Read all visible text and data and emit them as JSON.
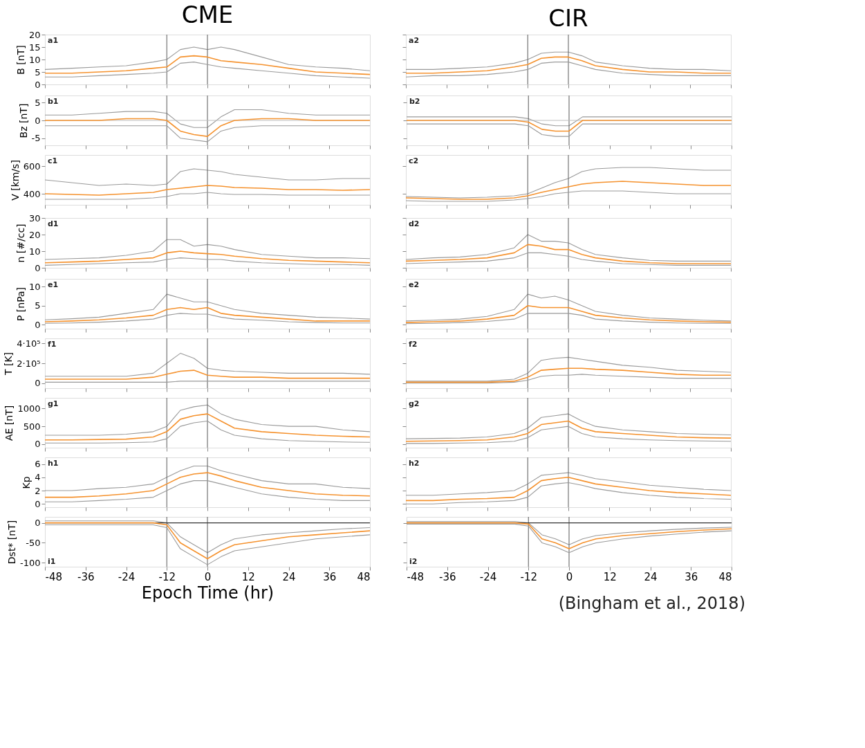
{
  "chart_data": [
    {
      "type": "line",
      "title": "CME",
      "ylabel": "B [nT]",
      "annotations": [
        "a1"
      ],
      "tick_labels": "y",
      "xlim": [
        -48,
        48
      ],
      "xticks": [
        -48,
        -36,
        -24,
        -12,
        0,
        12,
        24,
        36,
        48
      ],
      "ylim": [
        0,
        20
      ],
      "yticks": [
        0,
        5,
        10,
        15,
        20
      ],
      "ref_lines": [
        {
          "axis": "x",
          "value": -12,
          "color": "#666666"
        },
        {
          "axis": "x",
          "value": 0,
          "color": "#666666"
        }
      ],
      "x": [
        -48,
        -40,
        -32,
        -24,
        -16,
        -12,
        -8,
        -4,
        0,
        4,
        8,
        16,
        24,
        32,
        40,
        48
      ],
      "series": [
        {
          "color": "#999999",
          "values": [
            6,
            6.5,
            7,
            7.5,
            9,
            10,
            14,
            15,
            14,
            15,
            14,
            11,
            8,
            7,
            6.5,
            5.5
          ]
        },
        {
          "color": "#999999",
          "values": [
            3,
            3,
            3.5,
            4,
            4.5,
            5,
            8.5,
            9,
            8,
            7,
            6.5,
            5.5,
            4.5,
            3.5,
            3,
            2.5
          ]
        },
        {
          "color": "#f5922e",
          "values": [
            4.5,
            4.5,
            5,
            5.5,
            6.5,
            7,
            11,
            11.5,
            11,
            9.5,
            9,
            8,
            6.5,
            5,
            4.5,
            4
          ]
        }
      ]
    },
    {
      "type": "line",
      "title": "CIR",
      "annotations": [
        "a2"
      ],
      "tick_labels": false,
      "xlim": [
        -48,
        48
      ],
      "xticks": [
        -48,
        -36,
        -24,
        -12,
        0,
        12,
        24,
        36,
        48
      ],
      "ylim": [
        0,
        20
      ],
      "yticks": [
        0,
        5,
        10,
        15,
        20
      ],
      "ref_lines": [
        {
          "axis": "x",
          "value": -12,
          "color": "#666666"
        },
        {
          "axis": "x",
          "value": 0,
          "color": "#666666"
        }
      ],
      "x": [
        -48,
        -40,
        -32,
        -24,
        -16,
        -12,
        -8,
        -4,
        0,
        4,
        8,
        16,
        24,
        32,
        40,
        48
      ],
      "series": [
        {
          "color": "#999999",
          "values": [
            6,
            6,
            6.5,
            7,
            8.5,
            10,
            12.5,
            13,
            13,
            11.5,
            9,
            7.5,
            6.5,
            6,
            6,
            5.5
          ]
        },
        {
          "color": "#999999",
          "values": [
            3,
            3.5,
            3.5,
            4,
            5,
            6,
            8.5,
            9,
            9,
            7.5,
            6,
            4.5,
            4,
            3.5,
            3.5,
            3.5
          ]
        },
        {
          "color": "#f5922e",
          "values": [
            4.5,
            4.5,
            5,
            5.5,
            7,
            8,
            10.5,
            11,
            11,
            9.5,
            7.5,
            6,
            5,
            5,
            4.5,
            4.5
          ]
        }
      ]
    },
    {
      "type": "line",
      "ylabel": "Bz [nT]",
      "annotations": [
        "b1"
      ],
      "tick_labels": "y",
      "xlim": [
        -48,
        48
      ],
      "xticks": [
        -48,
        -36,
        -24,
        -12,
        0,
        12,
        24,
        36,
        48
      ],
      "ylim": [
        -7,
        7
      ],
      "yticks": [
        -5,
        0,
        5
      ],
      "ref_lines": [
        {
          "axis": "x",
          "value": -12,
          "color": "#666666"
        },
        {
          "axis": "x",
          "value": 0,
          "color": "#666666"
        },
        {
          "axis": "y",
          "value": 0,
          "color": "#bbbbbb"
        }
      ],
      "x": [
        -48,
        -40,
        -32,
        -24,
        -16,
        -12,
        -8,
        -4,
        0,
        4,
        8,
        16,
        24,
        32,
        40,
        48
      ],
      "series": [
        {
          "color": "#999999",
          "values": [
            1.5,
            1.5,
            2,
            2.5,
            2.5,
            2,
            -1,
            -2,
            -2,
            1,
            3,
            3,
            2,
            1.5,
            1.5,
            1.5
          ]
        },
        {
          "color": "#999999",
          "values": [
            -1.5,
            -1.5,
            -1.5,
            -1.5,
            -1.5,
            -1.5,
            -5,
            -5.5,
            -6,
            -3,
            -2,
            -1.5,
            -1.5,
            -1.5,
            -1.5,
            -1.5
          ]
        },
        {
          "color": "#f5922e",
          "values": [
            0,
            0,
            0,
            0.5,
            0.5,
            0,
            -3,
            -4,
            -4.5,
            -1.5,
            0,
            0.5,
            0.5,
            0,
            0,
            0
          ]
        }
      ]
    },
    {
      "type": "line",
      "annotations": [
        "b2"
      ],
      "tick_labels": false,
      "xlim": [
        -48,
        48
      ],
      "xticks": [
        -48,
        -36,
        -24,
        -12,
        0,
        12,
        24,
        36,
        48
      ],
      "ylim": [
        -7,
        7
      ],
      "yticks": [
        -5,
        0,
        5
      ],
      "ref_lines": [
        {
          "axis": "x",
          "value": -12,
          "color": "#666666"
        },
        {
          "axis": "x",
          "value": 0,
          "color": "#666666"
        },
        {
          "axis": "y",
          "value": 0,
          "color": "#bbbbbb"
        }
      ],
      "x": [
        -48,
        -40,
        -32,
        -24,
        -16,
        -12,
        -8,
        -4,
        0,
        4,
        8,
        16,
        24,
        32,
        40,
        48
      ],
      "series": [
        {
          "color": "#999999",
          "values": [
            1,
            1,
            1,
            1,
            1,
            0.5,
            -1,
            -1.5,
            -1.5,
            1,
            1,
            1,
            1,
            1,
            1,
            1
          ]
        },
        {
          "color": "#999999",
          "values": [
            -1,
            -1,
            -1,
            -1,
            -1,
            -1.5,
            -4,
            -4.5,
            -4.5,
            -1,
            -1,
            -1,
            -1,
            -1,
            -1,
            -1
          ]
        },
        {
          "color": "#f5922e",
          "values": [
            0,
            0,
            0,
            0,
            0,
            -0.5,
            -2.5,
            -3,
            -3,
            0,
            0,
            0,
            0,
            0,
            0,
            0
          ]
        }
      ]
    },
    {
      "type": "line",
      "ylabel": "V [km/s]",
      "annotations": [
        "c1"
      ],
      "tick_labels": "y",
      "xlim": [
        -48,
        48
      ],
      "xticks": [
        -48,
        -36,
        -24,
        -12,
        0,
        12,
        24,
        36,
        48
      ],
      "ylim": [
        320,
        680
      ],
      "yticks": [
        400,
        600
      ],
      "ref_lines": [
        {
          "axis": "x",
          "value": -12,
          "color": "#666666"
        },
        {
          "axis": "x",
          "value": 0,
          "color": "#666666"
        }
      ],
      "x": [
        -48,
        -40,
        -32,
        -24,
        -16,
        -12,
        -8,
        -4,
        0,
        4,
        8,
        16,
        24,
        32,
        40,
        48
      ],
      "series": [
        {
          "color": "#999999",
          "values": [
            500,
            480,
            460,
            470,
            460,
            470,
            560,
            580,
            570,
            560,
            540,
            520,
            500,
            500,
            510,
            510
          ]
        },
        {
          "color": "#999999",
          "values": [
            360,
            360,
            360,
            360,
            370,
            380,
            400,
            400,
            410,
            400,
            395,
            395,
            390,
            390,
            390,
            390
          ]
        },
        {
          "color": "#f5922e",
          "values": [
            400,
            395,
            390,
            400,
            410,
            430,
            440,
            450,
            460,
            455,
            445,
            440,
            430,
            430,
            425,
            430
          ]
        }
      ]
    },
    {
      "type": "line",
      "annotations": [
        "c2"
      ],
      "tick_labels": false,
      "xlim": [
        -48,
        48
      ],
      "xticks": [
        -48,
        -36,
        -24,
        -12,
        0,
        12,
        24,
        36,
        48
      ],
      "ylim": [
        320,
        680
      ],
      "yticks": [
        400,
        600
      ],
      "ref_lines": [
        {
          "axis": "x",
          "value": -12,
          "color": "#666666"
        },
        {
          "axis": "x",
          "value": 0,
          "color": "#666666"
        }
      ],
      "x": [
        -48,
        -40,
        -32,
        -24,
        -16,
        -12,
        -8,
        -4,
        0,
        4,
        8,
        16,
        24,
        32,
        40,
        48
      ],
      "series": [
        {
          "color": "#999999",
          "values": [
            380,
            375,
            370,
            375,
            385,
            400,
            440,
            480,
            510,
            560,
            580,
            590,
            590,
            580,
            570,
            570
          ]
        },
        {
          "color": "#999999",
          "values": [
            350,
            345,
            345,
            345,
            355,
            365,
            380,
            400,
            410,
            420,
            420,
            420,
            410,
            400,
            400,
            400
          ]
        },
        {
          "color": "#f5922e",
          "values": [
            370,
            365,
            360,
            360,
            370,
            385,
            410,
            430,
            450,
            470,
            480,
            490,
            480,
            470,
            460,
            460
          ]
        }
      ]
    },
    {
      "type": "line",
      "ylabel": "n [#/cc]",
      "annotations": [
        "d1"
      ],
      "tick_labels": "y",
      "xlim": [
        -48,
        48
      ],
      "xticks": [
        -48,
        -36,
        -24,
        -12,
        0,
        12,
        24,
        36,
        48
      ],
      "ylim": [
        0,
        30
      ],
      "yticks": [
        0,
        10,
        20,
        30
      ],
      "ref_lines": [
        {
          "axis": "x",
          "value": -12,
          "color": "#666666"
        },
        {
          "axis": "x",
          "value": 0,
          "color": "#666666"
        }
      ],
      "x": [
        -48,
        -40,
        -32,
        -24,
        -16,
        -12,
        -8,
        -4,
        0,
        4,
        8,
        16,
        24,
        32,
        40,
        48
      ],
      "series": [
        {
          "color": "#999999",
          "values": [
            5,
            5.5,
            6,
            7.5,
            10,
            17,
            17,
            13,
            14,
            13,
            11,
            8,
            7,
            6,
            6,
            5.5
          ]
        },
        {
          "color": "#999999",
          "values": [
            1.5,
            2,
            2.5,
            3,
            3.5,
            5,
            6,
            5.5,
            5,
            5,
            4,
            3,
            2.5,
            2,
            2,
            1.5
          ]
        },
        {
          "color": "#f5922e",
          "values": [
            3,
            3.5,
            4,
            5,
            6,
            9,
            10,
            9,
            8.5,
            8,
            7,
            5.5,
            4.5,
            4,
            3.5,
            3
          ]
        }
      ]
    },
    {
      "type": "line",
      "annotations": [
        "d2"
      ],
      "tick_labels": false,
      "xlim": [
        -48,
        48
      ],
      "xticks": [
        -48,
        -36,
        -24,
        -12,
        0,
        12,
        24,
        36,
        48
      ],
      "ylim": [
        0,
        30
      ],
      "yticks": [
        0,
        10,
        20,
        30
      ],
      "ref_lines": [
        {
          "axis": "x",
          "value": -12,
          "color": "#666666"
        },
        {
          "axis": "x",
          "value": 0,
          "color": "#666666"
        }
      ],
      "x": [
        -48,
        -40,
        -32,
        -24,
        -16,
        -12,
        -8,
        -4,
        0,
        4,
        8,
        16,
        24,
        32,
        40,
        48
      ],
      "series": [
        {
          "color": "#999999",
          "values": [
            5,
            6,
            6.5,
            8,
            12,
            20,
            16,
            16,
            15,
            11,
            8,
            6,
            4.5,
            4,
            4,
            4
          ]
        },
        {
          "color": "#999999",
          "values": [
            2.5,
            3,
            3.5,
            4,
            6,
            9,
            9,
            8,
            7,
            5,
            4,
            2.5,
            2,
            1.5,
            1.5,
            1.5
          ]
        },
        {
          "color": "#f5922e",
          "values": [
            4,
            4.5,
            5,
            6,
            9,
            14,
            13,
            11,
            11,
            8,
            6,
            4,
            3,
            2.5,
            2.5,
            2.5
          ]
        }
      ]
    },
    {
      "type": "line",
      "ylabel": "P [nPa]",
      "annotations": [
        "e1"
      ],
      "tick_labels": "y",
      "xlim": [
        -48,
        48
      ],
      "xticks": [
        -48,
        -36,
        -24,
        -12,
        0,
        12,
        24,
        36,
        48
      ],
      "ylim": [
        -1,
        12
      ],
      "yticks": [
        0,
        5,
        10
      ],
      "ref_lines": [
        {
          "axis": "x",
          "value": -12,
          "color": "#666666"
        },
        {
          "axis": "x",
          "value": 0,
          "color": "#666666"
        }
      ],
      "x": [
        -48,
        -40,
        -32,
        -24,
        -16,
        -12,
        -8,
        -4,
        0,
        4,
        8,
        16,
        24,
        32,
        40,
        48
      ],
      "series": [
        {
          "color": "#999999",
          "values": [
            1.3,
            1.6,
            2,
            3,
            4,
            8,
            7,
            6,
            6,
            5,
            4,
            3,
            2.5,
            2,
            1.8,
            1.5
          ]
        },
        {
          "color": "#999999",
          "values": [
            0.4,
            0.5,
            0.7,
            1,
            1.5,
            2.5,
            3,
            2.8,
            2.8,
            2,
            1.5,
            1.2,
            0.8,
            0.6,
            0.5,
            0.5
          ]
        },
        {
          "color": "#f5922e",
          "values": [
            0.8,
            1,
            1.3,
            1.8,
            2.5,
            4,
            4.5,
            4,
            4.5,
            3,
            2.5,
            2,
            1.5,
            1,
            1,
            1
          ]
        }
      ]
    },
    {
      "type": "line",
      "annotations": [
        "e2"
      ],
      "tick_labels": false,
      "xlim": [
        -48,
        48
      ],
      "xticks": [
        -48,
        -36,
        -24,
        -12,
        0,
        12,
        24,
        36,
        48
      ],
      "ylim": [
        -1,
        12
      ],
      "yticks": [
        0,
        5,
        10
      ],
      "ref_lines": [
        {
          "axis": "x",
          "value": -12,
          "color": "#666666"
        },
        {
          "axis": "x",
          "value": 0,
          "color": "#666666"
        }
      ],
      "x": [
        -48,
        -40,
        -32,
        -24,
        -16,
        -12,
        -8,
        -4,
        0,
        4,
        8,
        16,
        24,
        32,
        40,
        48
      ],
      "series": [
        {
          "color": "#999999",
          "values": [
            1,
            1.2,
            1.5,
            2.2,
            4,
            8,
            7,
            7.5,
            6.5,
            5,
            3.5,
            2.5,
            1.8,
            1.5,
            1.2,
            1
          ]
        },
        {
          "color": "#999999",
          "values": [
            0.3,
            0.4,
            0.6,
            0.9,
            1.5,
            3,
            3,
            3,
            3,
            2.5,
            1.5,
            1,
            0.7,
            0.5,
            0.4,
            0.4
          ]
        },
        {
          "color": "#f5922e",
          "values": [
            0.6,
            0.8,
            1,
            1.5,
            2.5,
            5,
            4.5,
            4.5,
            4.5,
            3.5,
            2.5,
            1.8,
            1.3,
            1,
            0.8,
            0.7
          ]
        }
      ]
    },
    {
      "type": "line",
      "ylabel": "T [K]",
      "annotations": [
        "f1"
      ],
      "tick_labels": "y",
      "xlim": [
        -48,
        48
      ],
      "xticks": [
        -48,
        -36,
        -24,
        -12,
        0,
        12,
        24,
        36,
        48
      ],
      "ylim": [
        -50000,
        450000
      ],
      "yticks": [
        0,
        {
          "value": 200000,
          "label": "2·10⁵"
        },
        {
          "value": 400000,
          "label": "4·10⁵"
        }
      ],
      "ref_lines": [
        {
          "axis": "x",
          "value": -12,
          "color": "#666666"
        },
        {
          "axis": "x",
          "value": 0,
          "color": "#666666"
        }
      ],
      "x": [
        -48,
        -40,
        -32,
        -24,
        -16,
        -12,
        -8,
        -4,
        0,
        4,
        8,
        16,
        24,
        32,
        40,
        48
      ],
      "series": [
        {
          "color": "#999999",
          "values": [
            70000,
            70000,
            70000,
            70000,
            100000,
            200000,
            300000,
            250000,
            150000,
            130000,
            120000,
            110000,
            100000,
            100000,
            100000,
            90000
          ]
        },
        {
          "color": "#999999",
          "values": [
            10000,
            10000,
            10000,
            10000,
            10000,
            10000,
            20000,
            20000,
            20000,
            20000,
            20000,
            20000,
            20000,
            20000,
            20000,
            20000
          ]
        },
        {
          "color": "#f5922e",
          "values": [
            40000,
            40000,
            40000,
            40000,
            60000,
            90000,
            120000,
            130000,
            80000,
            70000,
            60000,
            60000,
            50000,
            50000,
            50000,
            50000
          ]
        }
      ]
    },
    {
      "type": "line",
      "annotations": [
        "f2"
      ],
      "tick_labels": false,
      "xlim": [
        -48,
        48
      ],
      "xticks": [
        -48,
        -36,
        -24,
        -12,
        0,
        12,
        24,
        36,
        48
      ],
      "ylim": [
        -50000,
        450000
      ],
      "yticks": [
        0,
        200000,
        400000
      ],
      "ref_lines": [
        {
          "axis": "x",
          "value": -12,
          "color": "#666666"
        },
        {
          "axis": "x",
          "value": 0,
          "color": "#666666"
        }
      ],
      "x": [
        -48,
        -40,
        -32,
        -24,
        -16,
        -12,
        -8,
        -4,
        0,
        4,
        8,
        16,
        24,
        32,
        40,
        48
      ],
      "series": [
        {
          "color": "#999999",
          "values": [
            20000,
            20000,
            20000,
            20000,
            40000,
            100000,
            230000,
            250000,
            260000,
            240000,
            220000,
            180000,
            160000,
            130000,
            120000,
            110000
          ]
        },
        {
          "color": "#999999",
          "values": [
            0,
            0,
            0,
            0,
            10000,
            30000,
            70000,
            80000,
            80000,
            90000,
            80000,
            70000,
            60000,
            50000,
            50000,
            50000
          ]
        },
        {
          "color": "#f5922e",
          "values": [
            10000,
            10000,
            10000,
            10000,
            20000,
            60000,
            130000,
            140000,
            150000,
            150000,
            140000,
            130000,
            110000,
            90000,
            80000,
            80000
          ]
        }
      ]
    },
    {
      "type": "line",
      "ylabel": "AE [nT]",
      "annotations": [
        "g1"
      ],
      "tick_labels": "y",
      "xlim": [
        -48,
        48
      ],
      "xticks": [
        -48,
        -36,
        -24,
        -12,
        0,
        12,
        24,
        36,
        48
      ],
      "ylim": [
        -100,
        1300
      ],
      "yticks": [
        0,
        500,
        1000
      ],
      "ref_lines": [
        {
          "axis": "x",
          "value": -12,
          "color": "#666666"
        },
        {
          "axis": "x",
          "value": 0,
          "color": "#666666"
        }
      ],
      "x": [
        -48,
        -40,
        -32,
        -24,
        -16,
        -12,
        -8,
        -4,
        0,
        4,
        8,
        16,
        24,
        32,
        40,
        48
      ],
      "series": [
        {
          "color": "#999999",
          "values": [
            250,
            250,
            250,
            280,
            350,
            500,
            950,
            1050,
            1100,
            850,
            700,
            550,
            500,
            500,
            400,
            350
          ]
        },
        {
          "color": "#999999",
          "values": [
            30,
            30,
            30,
            40,
            60,
            150,
            500,
            600,
            650,
            400,
            250,
            150,
            100,
            80,
            60,
            50
          ]
        },
        {
          "color": "#f5922e",
          "values": [
            120,
            120,
            130,
            140,
            200,
            350,
            700,
            800,
            850,
            650,
            450,
            350,
            300,
            250,
            220,
            200
          ]
        }
      ]
    },
    {
      "type": "line",
      "annotations": [
        "g2"
      ],
      "tick_labels": false,
      "xlim": [
        -48,
        48
      ],
      "xticks": [
        -48,
        -36,
        -24,
        -12,
        0,
        12,
        24,
        36,
        48
      ],
      "ylim": [
        -100,
        1300
      ],
      "yticks": [
        0,
        500,
        1000
      ],
      "ref_lines": [
        {
          "axis": "x",
          "value": -12,
          "color": "#666666"
        },
        {
          "axis": "x",
          "value": 0,
          "color": "#666666"
        }
      ],
      "x": [
        -48,
        -40,
        -32,
        -24,
        -16,
        -12,
        -8,
        -4,
        0,
        4,
        8,
        16,
        24,
        32,
        40,
        48
      ],
      "series": [
        {
          "color": "#999999",
          "values": [
            150,
            160,
            170,
            200,
            300,
            450,
            750,
            800,
            850,
            650,
            500,
            400,
            350,
            300,
            280,
            260
          ]
        },
        {
          "color": "#999999",
          "values": [
            20,
            20,
            30,
            40,
            80,
            180,
            400,
            450,
            500,
            300,
            200,
            150,
            120,
            100,
            90,
            80
          ]
        },
        {
          "color": "#f5922e",
          "values": [
            80,
            90,
            100,
            120,
            200,
            300,
            550,
            600,
            650,
            450,
            350,
            300,
            250,
            200,
            180,
            170
          ]
        }
      ]
    },
    {
      "type": "line",
      "ylabel": "Kp",
      "annotations": [
        "h1"
      ],
      "tick_labels": "y",
      "xlim": [
        -48,
        48
      ],
      "xticks": [
        -48,
        -36,
        -24,
        -12,
        0,
        12,
        24,
        36,
        48
      ],
      "ylim": [
        -0.5,
        7
      ],
      "yticks": [
        0,
        2,
        4,
        6
      ],
      "ref_lines": [
        {
          "axis": "x",
          "value": -12,
          "color": "#666666"
        },
        {
          "axis": "x",
          "value": 0,
          "color": "#666666"
        }
      ],
      "x": [
        -48,
        -40,
        -32,
        -24,
        -16,
        -12,
        -8,
        -4,
        0,
        4,
        8,
        16,
        24,
        32,
        40,
        48
      ],
      "series": [
        {
          "color": "#999999",
          "values": [
            2,
            2,
            2.3,
            2.5,
            3,
            4,
            5,
            5.7,
            5.7,
            5,
            4.5,
            3.5,
            3,
            3,
            2.5,
            2.3
          ]
        },
        {
          "color": "#999999",
          "values": [
            0.3,
            0.3,
            0.5,
            0.7,
            1,
            2,
            3,
            3.5,
            3.5,
            3,
            2.5,
            1.5,
            1,
            0.7,
            0.5,
            0.5
          ]
        },
        {
          "color": "#f5922e",
          "values": [
            1,
            1,
            1.2,
            1.5,
            2,
            3,
            4,
            4.5,
            4.7,
            4.2,
            3.5,
            2.5,
            2,
            1.5,
            1.3,
            1.2
          ]
        }
      ]
    },
    {
      "type": "line",
      "annotations": [
        "h2"
      ],
      "tick_labels": false,
      "xlim": [
        -48,
        48
      ],
      "xticks": [
        -48,
        -36,
        -24,
        -12,
        0,
        12,
        24,
        36,
        48
      ],
      "ylim": [
        -0.5,
        7
      ],
      "yticks": [
        0,
        2,
        4,
        6
      ],
      "ref_lines": [
        {
          "axis": "x",
          "value": -12,
          "color": "#666666"
        },
        {
          "axis": "x",
          "value": 0,
          "color": "#666666"
        }
      ],
      "x": [
        -48,
        -40,
        -32,
        -24,
        -16,
        -12,
        -8,
        -4,
        0,
        4,
        8,
        16,
        24,
        32,
        40,
        48
      ],
      "series": [
        {
          "color": "#999999",
          "values": [
            1.3,
            1.3,
            1.5,
            1.7,
            2,
            3,
            4.3,
            4.5,
            4.7,
            4.3,
            3.8,
            3.3,
            2.8,
            2.5,
            2.2,
            2
          ]
        },
        {
          "color": "#999999",
          "values": [
            0,
            0,
            0.2,
            0.3,
            0.5,
            1,
            2.7,
            3,
            3.2,
            2.8,
            2.3,
            1.7,
            1.3,
            1,
            0.8,
            0.7
          ]
        },
        {
          "color": "#f5922e",
          "values": [
            0.5,
            0.5,
            0.7,
            0.8,
            1,
            2,
            3.5,
            3.8,
            4,
            3.5,
            3,
            2.5,
            2,
            1.7,
            1.5,
            1.3
          ]
        }
      ]
    },
    {
      "type": "line",
      "ylabel": "Dst* [nT]",
      "xlabel": "Epoch Time (hr)",
      "annotations": [
        "i1"
      ],
      "xlim": [
        -48,
        48
      ],
      "xticks": [
        -48,
        -36,
        -24,
        -12,
        0,
        12,
        24,
        36,
        48
      ],
      "ylim": [
        -110,
        15
      ],
      "yticks": [
        -100,
        -50,
        0
      ],
      "ref_lines": [
        {
          "axis": "x",
          "value": -12,
          "color": "#666666"
        },
        {
          "axis": "x",
          "value": 0,
          "color": "#666666"
        },
        {
          "axis": "y",
          "value": 0,
          "color": "#333333"
        }
      ],
      "x": [
        -48,
        -40,
        -32,
        -24,
        -16,
        -12,
        -8,
        -4,
        0,
        4,
        8,
        16,
        24,
        32,
        40,
        48
      ],
      "series": [
        {
          "color": "#999999",
          "values": [
            5,
            5,
            5,
            5,
            5,
            0,
            -35,
            -55,
            -75,
            -55,
            -40,
            -30,
            -25,
            -20,
            -15,
            -12
          ]
        },
        {
          "color": "#999999",
          "values": [
            -5,
            -5,
            -5,
            -5,
            -5,
            -12,
            -65,
            -85,
            -105,
            -85,
            -70,
            -60,
            -50,
            -40,
            -35,
            -30
          ]
        },
        {
          "color": "#f5922e",
          "values": [
            0,
            0,
            0,
            0,
            0,
            -5,
            -50,
            -70,
            -90,
            -70,
            -55,
            -45,
            -35,
            -30,
            -25,
            -20
          ]
        }
      ]
    },
    {
      "type": "line",
      "annotations": [
        "i2",
        "(Bingham et al., 2018)"
      ],
      "tick_labels": "x",
      "xlim": [
        -48,
        48
      ],
      "xticks": [
        -48,
        -36,
        -24,
        -12,
        0,
        12,
        24,
        36,
        48
      ],
      "ylim": [
        -110,
        15
      ],
      "yticks": [
        -100,
        -50,
        0
      ],
      "ref_lines": [
        {
          "axis": "x",
          "value": -12,
          "color": "#666666"
        },
        {
          "axis": "x",
          "value": 0,
          "color": "#666666"
        },
        {
          "axis": "y",
          "value": 0,
          "color": "#333333"
        }
      ],
      "x": [
        -48,
        -40,
        -32,
        -24,
        -16,
        -12,
        -8,
        -4,
        0,
        4,
        8,
        16,
        24,
        32,
        40,
        48
      ],
      "series": [
        {
          "color": "#999999",
          "values": [
            3,
            3,
            3,
            3,
            3,
            0,
            -30,
            -40,
            -55,
            -40,
            -32,
            -25,
            -20,
            -16,
            -13,
            -11
          ]
        },
        {
          "color": "#999999",
          "values": [
            -3,
            -3,
            -3,
            -3,
            -3,
            -8,
            -50,
            -60,
            -75,
            -60,
            -50,
            -40,
            -33,
            -28,
            -23,
            -20
          ]
        },
        {
          "color": "#f5922e",
          "values": [
            0,
            0,
            0,
            0,
            0,
            -3,
            -40,
            -50,
            -65,
            -50,
            -40,
            -32,
            -27,
            -22,
            -18,
            -15
          ]
        }
      ]
    }
  ]
}
